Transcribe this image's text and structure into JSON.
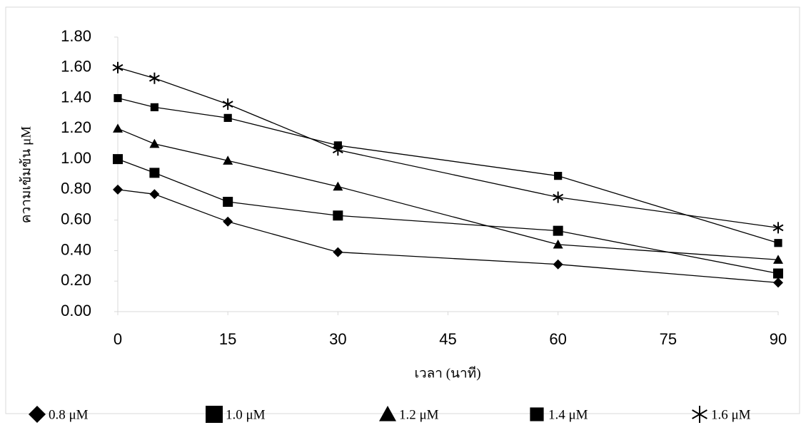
{
  "chart_data": {
    "type": "line",
    "x_label": "เวลา (นาที)",
    "y_label": "ความเข้มข้น μM",
    "x": [
      0,
      5,
      15,
      30,
      60,
      90
    ],
    "xlim": [
      0,
      90
    ],
    "xticks": [
      0,
      15,
      30,
      45,
      60,
      75,
      90
    ],
    "ylim": [
      0,
      1.8
    ],
    "yticks": [
      {
        "value": 0,
        "label": "0.00"
      },
      {
        "value": 0.2,
        "label": "0.20"
      },
      {
        "value": 0.4,
        "label": "0.40"
      },
      {
        "value": 0.6,
        "label": "0.60"
      },
      {
        "value": 0.8,
        "label": "0.80"
      },
      {
        "value": 1.0,
        "label": "1.00"
      },
      {
        "value": 1.2,
        "label": "1.20"
      },
      {
        "value": 1.4,
        "label": "1.40"
      },
      {
        "value": 1.6,
        "label": "1.60"
      },
      {
        "value": 1.8,
        "label": "1.80"
      }
    ],
    "legend": "bottom",
    "series": [
      {
        "name": "0.8 μM",
        "color": "#000000",
        "marker": "diamond",
        "values": [
          0.8,
          0.77,
          0.59,
          0.39,
          0.31,
          0.19
        ]
      },
      {
        "name": "1.0 μM",
        "color": "#000000",
        "marker": "square",
        "values": [
          1.0,
          0.91,
          0.72,
          0.63,
          0.53,
          0.25
        ]
      },
      {
        "name": "1.2 μM",
        "color": "#000000",
        "marker": "triangle",
        "values": [
          1.2,
          1.1,
          0.99,
          0.82,
          0.44,
          0.34
        ]
      },
      {
        "name": "1.4 μM",
        "color": "#000000",
        "marker": "small-square",
        "values": [
          1.4,
          1.34,
          1.27,
          1.09,
          0.89,
          0.45
        ]
      },
      {
        "name": "1.6 μM",
        "color": "#000000",
        "marker": "asterisk",
        "values": [
          1.6,
          1.53,
          1.36,
          1.06,
          0.75,
          0.55
        ]
      }
    ]
  }
}
